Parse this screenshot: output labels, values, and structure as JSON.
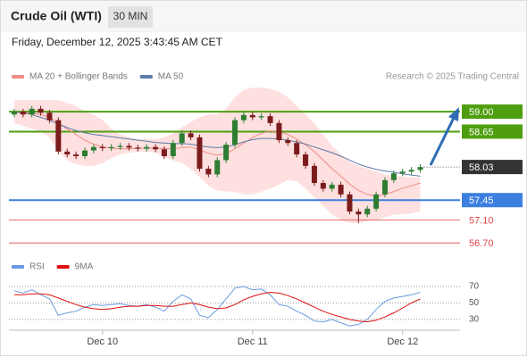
{
  "header": {
    "title": "Crude Oil (WTI)",
    "timeframe": "30 MIN",
    "datetime": "Friday, December 12, 2025 3:43:45 AM CET",
    "source": "Research © 2025 Trading Central"
  },
  "chart_data": [
    {
      "type": "candlestick",
      "xlim": [
        -0.6,
        50.5
      ],
      "ylim": [
        56.5,
        59.47
      ],
      "up_color": "#2e7d32",
      "down_color": "#7b1c1c",
      "open": [
        58.95,
        59.0,
        58.95,
        59.05,
        58.98,
        58.85,
        58.3,
        58.25,
        58.22,
        58.32,
        58.38,
        58.36,
        58.38,
        58.4,
        58.37,
        58.35,
        58.38,
        58.34,
        58.22,
        58.45,
        58.62,
        58.55,
        58.0,
        57.9,
        58.15,
        58.42,
        58.85,
        58.94,
        58.9,
        58.92,
        58.8,
        58.5,
        58.45,
        58.25,
        58.05,
        57.75,
        57.65,
        57.72,
        57.55,
        57.25,
        57.2,
        57.3,
        57.55,
        57.8,
        57.92,
        57.95,
        57.98
      ],
      "high": [
        59.05,
        59.05,
        59.1,
        59.1,
        59.03,
        58.9,
        58.35,
        58.3,
        58.37,
        58.43,
        58.43,
        58.43,
        58.45,
        58.45,
        58.42,
        58.43,
        58.43,
        58.39,
        58.5,
        58.67,
        58.67,
        58.6,
        58.05,
        58.2,
        58.47,
        58.9,
        58.99,
        58.99,
        58.97,
        58.97,
        58.85,
        58.55,
        58.5,
        58.3,
        58.1,
        57.8,
        57.77,
        57.77,
        57.6,
        57.3,
        57.35,
        57.6,
        57.85,
        57.97,
        58.0,
        58.03,
        58.08
      ],
      "low": [
        58.9,
        58.9,
        58.9,
        58.93,
        58.8,
        58.25,
        58.2,
        58.17,
        58.17,
        58.27,
        58.31,
        58.31,
        58.33,
        58.32,
        58.3,
        58.3,
        58.29,
        58.17,
        58.17,
        58.4,
        58.5,
        57.95,
        57.85,
        57.85,
        58.1,
        58.37,
        58.8,
        58.85,
        58.85,
        58.75,
        58.45,
        58.4,
        58.2,
        58.0,
        57.7,
        57.6,
        57.6,
        57.5,
        57.2,
        57.05,
        57.15,
        57.25,
        57.5,
        57.75,
        57.87,
        57.9,
        57.93
      ],
      "close": [
        59.0,
        58.95,
        59.05,
        58.98,
        58.85,
        58.3,
        58.25,
        58.22,
        58.32,
        58.38,
        58.36,
        58.38,
        58.4,
        58.37,
        58.35,
        58.38,
        58.34,
        58.22,
        58.45,
        58.62,
        58.55,
        58.0,
        57.9,
        58.15,
        58.42,
        58.85,
        58.94,
        58.9,
        58.92,
        58.8,
        58.5,
        58.45,
        58.25,
        58.05,
        57.75,
        57.65,
        57.72,
        57.55,
        57.25,
        57.2,
        57.3,
        57.55,
        57.8,
        57.92,
        57.95,
        57.98,
        58.03
      ],
      "series": [
        {
          "name": "MA 20 + Bollinger Bands",
          "color": "#f08c84",
          "band_color": "#fde0df",
          "values": [
            58.98,
            58.98,
            58.97,
            58.95,
            58.9,
            58.8,
            58.7,
            58.6,
            58.5,
            58.43,
            58.38,
            58.36,
            58.35,
            58.35,
            58.36,
            58.36,
            58.36,
            58.35,
            58.35,
            58.37,
            58.38,
            58.33,
            58.27,
            58.24,
            58.26,
            58.35,
            58.45,
            58.55,
            58.62,
            58.66,
            58.65,
            58.6,
            58.52,
            58.42,
            58.3,
            58.15,
            58.0,
            57.87,
            57.73,
            57.62,
            57.55,
            57.52,
            57.55,
            57.6,
            57.66,
            57.7,
            57.75
          ],
          "upper": [
            59.2,
            59.2,
            59.2,
            59.2,
            59.2,
            59.2,
            59.15,
            59.1,
            59.0,
            58.95,
            58.85,
            58.7,
            58.6,
            58.55,
            58.52,
            58.52,
            58.52,
            58.55,
            58.62,
            58.72,
            58.82,
            58.9,
            58.95,
            58.95,
            59.05,
            59.25,
            59.38,
            59.42,
            59.42,
            59.4,
            59.35,
            59.25,
            59.1,
            58.95,
            58.8,
            58.6,
            58.4,
            58.25,
            58.12,
            58.05,
            58.0,
            57.95,
            57.9,
            57.88,
            57.86,
            57.85,
            57.85
          ],
          "lower": [
            58.8,
            58.75,
            58.7,
            58.65,
            58.55,
            58.3,
            58.15,
            58.08,
            58.05,
            58.05,
            58.1,
            58.18,
            58.25,
            58.28,
            58.3,
            58.3,
            58.28,
            58.2,
            58.15,
            58.1,
            58.0,
            57.85,
            57.7,
            57.62,
            57.6,
            57.6,
            57.55,
            57.55,
            57.6,
            57.65,
            57.72,
            57.8,
            57.78,
            57.65,
            57.5,
            57.35,
            57.2,
            57.1,
            57.05,
            57.05,
            57.08,
            57.1,
            57.15,
            57.2,
            57.2,
            57.22,
            57.25
          ]
        },
        {
          "name": "MA 50",
          "color": "#5d7aa8",
          "values": [
            59.0,
            58.98,
            58.95,
            58.9,
            58.85,
            58.78,
            58.72,
            58.67,
            58.63,
            58.6,
            58.58,
            58.56,
            58.54,
            58.52,
            58.5,
            58.48,
            58.46,
            58.45,
            58.44,
            58.44,
            58.43,
            58.4,
            58.38,
            58.37,
            58.38,
            58.42,
            58.47,
            58.51,
            58.53,
            58.53,
            58.52,
            58.5,
            58.47,
            58.43,
            58.38,
            58.33,
            58.28,
            58.22,
            58.15,
            58.08,
            58.03,
            57.99,
            57.96,
            57.94,
            57.91,
            57.89,
            57.87
          ]
        }
      ],
      "levels": [
        {
          "value": 59,
          "label": "59.00",
          "color": "#4f9e0f",
          "style": "box"
        },
        {
          "value": 58.65,
          "label": "58.65",
          "color": "#4f9e0f",
          "style": "box"
        },
        {
          "value": 58.03,
          "label": "58.03",
          "color": "#333333",
          "style": "current"
        },
        {
          "value": 57.45,
          "label": "57.45",
          "color": "#3d7fe0",
          "style": "box"
        },
        {
          "value": 57.1,
          "label": "57.10",
          "color": "#e04545",
          "style": "text"
        },
        {
          "value": 56.7,
          "label": "56.70",
          "color": "#e04545",
          "style": "text"
        }
      ]
    },
    {
      "type": "line",
      "xlim": [
        -0.6,
        50.5
      ],
      "ylim": [
        19,
        82
      ],
      "yticks": [
        30,
        50,
        70
      ],
      "xticks": [
        {
          "value": 10,
          "label": "Dec 10"
        },
        {
          "value": 27,
          "label": "Dec 11"
        },
        {
          "value": 44,
          "label": "Dec 12"
        }
      ],
      "series": [
        {
          "name": "RSI",
          "color": "#6a9be0",
          "values": [
            65,
            62,
            66,
            60,
            55,
            35,
            38,
            40,
            45,
            48,
            47,
            48,
            49,
            47,
            46,
            48,
            45,
            40,
            52,
            60,
            55,
            35,
            32,
            42,
            55,
            68,
            70,
            66,
            67,
            60,
            48,
            46,
            40,
            35,
            28,
            27,
            30,
            26,
            22,
            24,
            30,
            42,
            52,
            56,
            58,
            60,
            63
          ]
        },
        {
          "name": "9MA",
          "color": "#e01010",
          "values": [
            60,
            60,
            61,
            61,
            60,
            56,
            52,
            48,
            45,
            43,
            42,
            43,
            45,
            46,
            46,
            47,
            47,
            46,
            46,
            48,
            50,
            48,
            45,
            43,
            44,
            48,
            54,
            58,
            61,
            63,
            62,
            59,
            55,
            50,
            45,
            40,
            36,
            33,
            30,
            28,
            27,
            29,
            33,
            38,
            44,
            50,
            55
          ]
        }
      ]
    }
  ]
}
